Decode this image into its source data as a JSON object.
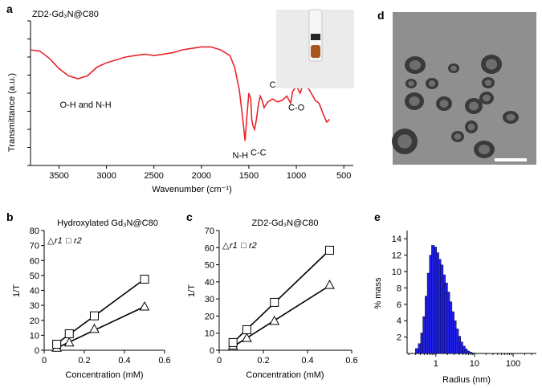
{
  "chart_data": [
    {
      "panel": "a",
      "type": "line",
      "title": "ZD2-Gd3N@C80",
      "xlabel": "Wavenumber (cm⁻¹)",
      "ylabel": "Transmittance (a.u.)",
      "x_ticks": [
        "3500",
        "3000",
        "2500",
        "2000",
        "1500",
        "1000",
        "500"
      ],
      "x_tick_values": [
        3500,
        3000,
        2500,
        2000,
        1500,
        1000,
        500
      ],
      "xlim": [
        3800,
        400
      ],
      "ylim": [
        0,
        1
      ],
      "line_color": "#e8262b",
      "x": [
        3800,
        3700,
        3600,
        3500,
        3400,
        3300,
        3200,
        3100,
        3000,
        2900,
        2800,
        2700,
        2600,
        2500,
        2400,
        2300,
        2200,
        2100,
        2000,
        1900,
        1800,
        1700,
        1650,
        1600,
        1560,
        1540,
        1520,
        1500,
        1480,
        1470,
        1460,
        1440,
        1420,
        1400,
        1380,
        1360,
        1340,
        1300,
        1250,
        1200,
        1150,
        1100,
        1060,
        1040,
        1000,
        960,
        940,
        900,
        860,
        800,
        760,
        720,
        680,
        650
      ],
      "y": [
        0.8,
        0.79,
        0.74,
        0.67,
        0.62,
        0.6,
        0.62,
        0.68,
        0.71,
        0.73,
        0.75,
        0.76,
        0.77,
        0.76,
        0.77,
        0.78,
        0.8,
        0.81,
        0.82,
        0.82,
        0.8,
        0.76,
        0.68,
        0.52,
        0.3,
        0.17,
        0.35,
        0.5,
        0.46,
        0.32,
        0.28,
        0.25,
        0.32,
        0.42,
        0.48,
        0.45,
        0.4,
        0.44,
        0.46,
        0.44,
        0.45,
        0.48,
        0.43,
        0.51,
        0.55,
        0.5,
        0.54,
        0.56,
        0.52,
        0.45,
        0.43,
        0.36,
        0.3,
        0.32
      ],
      "annotations": [
        {
          "text": "O-H and N-H",
          "x": 3220,
          "y": 0.4
        },
        {
          "text": "N-H",
          "x": 1590,
          "y": 0.05
        },
        {
          "text": "C-C",
          "x": 1400,
          "y": 0.07
        },
        {
          "text": "C-N",
          "x": 1200,
          "y": 0.54
        },
        {
          "text": "C-O",
          "x": 1000,
          "y": 0.38
        }
      ]
    },
    {
      "panel": "b",
      "type": "scatter",
      "title": "Hydroxylated Gd3N@C80",
      "xlabel": "Concentration (mM)",
      "ylabel": "1/T",
      "xlim": [
        0,
        0.6
      ],
      "ylim": [
        0,
        80
      ],
      "x_ticks": [
        "0",
        "0.2",
        "0.4",
        "0.6"
      ],
      "y_ticks": [
        "0",
        "10",
        "20",
        "30",
        "40",
        "50",
        "60",
        "70",
        "80"
      ],
      "legend": [
        "r1",
        "r2"
      ],
      "series": [
        {
          "name": "r1",
          "marker": "triangle",
          "x": [
            0.0625,
            0.125,
            0.25,
            0.5
          ],
          "y": [
            1.5,
            5,
            14,
            29
          ]
        },
        {
          "name": "r2",
          "marker": "square",
          "x": [
            0.0625,
            0.125,
            0.25,
            0.5
          ],
          "y": [
            4,
            11,
            23,
            47.5
          ]
        }
      ]
    },
    {
      "panel": "c",
      "type": "scatter",
      "title": "ZD2-Gd3N@C80",
      "xlabel": "Concentration (mM)",
      "ylabel": "1/T",
      "xlim": [
        0,
        0.6
      ],
      "ylim": [
        0,
        70
      ],
      "x_ticks": [
        "0",
        "0.2",
        "0.4",
        "0.6"
      ],
      "y_ticks": [
        "0",
        "10",
        "20",
        "30",
        "40",
        "50",
        "60",
        "70"
      ],
      "legend": [
        "r1",
        "r2"
      ],
      "series": [
        {
          "name": "r1",
          "marker": "triangle",
          "x": [
            0.0625,
            0.125,
            0.25,
            0.5
          ],
          "y": [
            2.5,
            7,
            17,
            38
          ]
        },
        {
          "name": "r2",
          "marker": "square",
          "x": [
            0.0625,
            0.125,
            0.25,
            0.5
          ],
          "y": [
            4.5,
            12,
            28,
            58.5
          ]
        }
      ]
    },
    {
      "panel": "e",
      "type": "bar",
      "xlabel": "Radius (nm)",
      "ylabel": "% mass",
      "x_ticks": [
        "1",
        "10",
        "100"
      ],
      "y_ticks": [
        "2",
        "4",
        "6",
        "8",
        "10",
        "12",
        "14"
      ],
      "ylim": [
        0,
        15
      ],
      "bar_color": "#1f1fe8",
      "x": [
        0.32,
        0.38,
        0.44,
        0.5,
        0.57,
        0.65,
        0.74,
        0.84,
        0.96,
        1.1,
        1.25,
        1.42,
        1.62,
        1.85,
        2.1,
        2.4,
        2.75,
        3.1,
        3.55,
        4.05,
        4.6,
        5.3,
        6.0,
        6.9,
        7.9,
        9.0,
        10.3,
        11.7,
        13.4,
        15.3,
        17.5
      ],
      "values": [
        0.6,
        1.2,
        2.5,
        4.5,
        7.0,
        9.8,
        12.0,
        13.2,
        13.0,
        12.3,
        11.5,
        10.8,
        9.6,
        8.6,
        7.5,
        6.3,
        5.1,
        4.0,
        3.0,
        2.1,
        1.4,
        0.9,
        0.55,
        0.3,
        0.15,
        0.08,
        0.04,
        0.02,
        0.01,
        0.01,
        0.0
      ]
    }
  ],
  "panels": {
    "a": "a",
    "b": "b",
    "c": "c",
    "d": "d",
    "e": "e"
  },
  "text": {
    "a_title": "ZD2-Gd₃N@C80",
    "a_ylabel": "Transmittance (a.u.)",
    "a_xlabel": "Wavenumber (cm⁻¹)",
    "b_title": "Hydroxylated Gd₃N@C80",
    "c_title": "ZD2-Gd₃N@C80",
    "conc_label": "Concentration (mM)",
    "inv_t": "1/T",
    "legend_r1": "r1",
    "legend_r2": "r2",
    "e_ylabel": "% mass",
    "e_xlabel": "Radius (nm)"
  }
}
